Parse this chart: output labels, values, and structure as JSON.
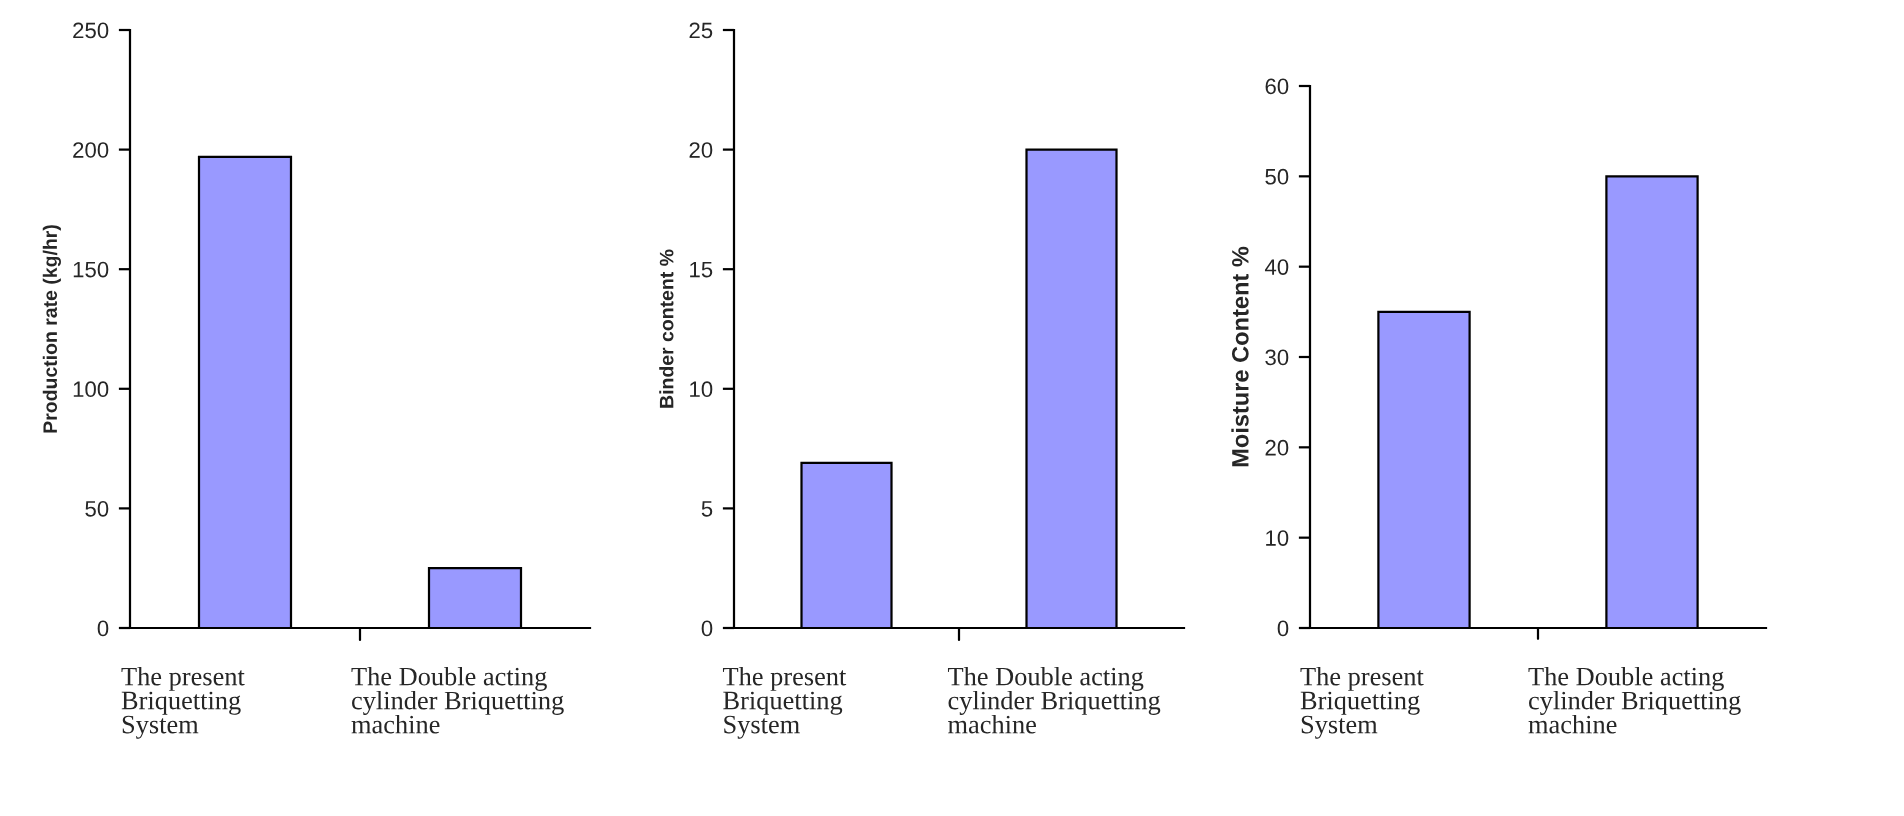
{
  "chart_data": [
    {
      "type": "bar",
      "ylabel": "Production rate (kg/hr)",
      "categories": [
        "The present\nBriquetting\nSystem",
        "The Double acting\ncylinder Briquetting\nmachine"
      ],
      "values": [
        197,
        25
      ],
      "color": "#9999ff",
      "ylim": [
        0,
        250
      ],
      "yticks": [
        0,
        50,
        100,
        150,
        200,
        250
      ]
    },
    {
      "type": "bar",
      "ylabel": "Binder content %",
      "categories": [
        "The present\nBriquetting\nSystem",
        "The Double acting\ncylinder Briquetting\nmachine"
      ],
      "values": [
        6.9,
        20
      ],
      "color": "#9999ff",
      "ylim": [
        0,
        25
      ],
      "yticks": [
        0,
        5,
        10,
        15,
        20,
        25
      ]
    },
    {
      "type": "bar",
      "ylabel": "Moisture Content %",
      "categories": [
        "The present\nBriquetting\nSystem",
        "The Double acting\ncylinder Briquetting\nmachine"
      ],
      "values": [
        35,
        50
      ],
      "color": "#9999ff",
      "ylim": [
        0,
        60
      ],
      "yticks": [
        0,
        10,
        20,
        30,
        40,
        50,
        60
      ]
    }
  ]
}
